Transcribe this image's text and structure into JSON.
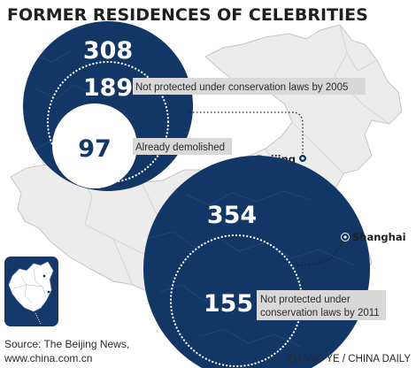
{
  "title": "FORMER RESIDENCES OF CELEBRITIES",
  "source": [
    "Source: The Beijing News,",
    "www.china.com.cn"
  ],
  "credit": "ZHANG YE / CHINA DAILY",
  "colors": {
    "navy": "#123766",
    "map_fill": "#ececec",
    "map_stroke": "#c4c4c4",
    "label_box": "#d8d8d8",
    "inset_bg": "#15386b",
    "text_dark": "#2a2a2a"
  },
  "chart_data": {
    "type": "bubble",
    "groups": [
      {
        "city": "Beijing",
        "total": "308",
        "items": [
          {
            "value": "189",
            "label": [
              "Not protected under conservation laws by 2005"
            ]
          },
          {
            "value": "97",
            "label": [
              "Already demolished"
            ]
          }
        ]
      },
      {
        "city": "Shanghai",
        "total": "354",
        "items": [
          {
            "value": "155",
            "label": [
              "Not protected under",
              "conservation laws by 2011"
            ]
          }
        ]
      }
    ]
  },
  "icons": {
    "city_marker": "city-dot-icon",
    "inset_map": "china-inset-map-icon"
  }
}
